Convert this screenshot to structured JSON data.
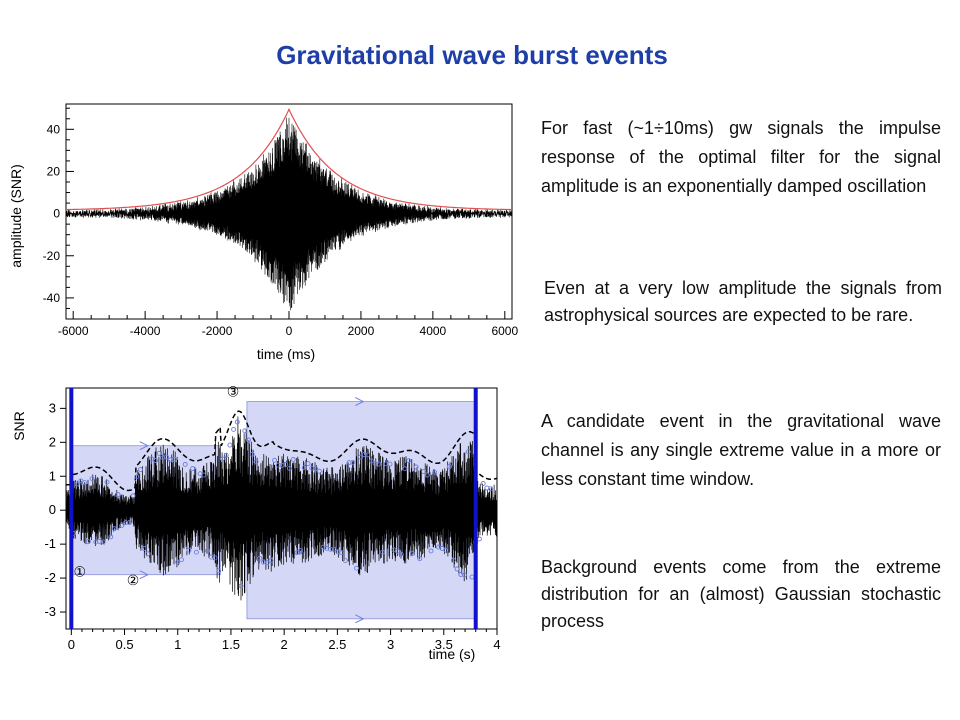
{
  "title": "Gravitational wave burst events",
  "paragraphs": {
    "p1": "For fast (~1÷10ms) gw signals the impulse response of the optimal filter for the signal amplitude is an exponentially damped oscillation",
    "p2": "Even at a very low amplitude the signals from astrophysical sources are expected to be rare.",
    "p3": "A candidate event in the gravitational wave channel is any single extreme value in a more or less constant time window.",
    "p4": "Background events come from the extreme distribution for an (almost) Gaussian stochastic process"
  },
  "chart_data": [
    {
      "type": "line",
      "xlabel": "time  (ms)",
      "ylabel": "amplitude   (SNR)",
      "xlim": [
        -6200,
        6200
      ],
      "ylim": [
        -50,
        52
      ],
      "x_ticks": [
        "-6000",
        "-4000",
        "-2000",
        "0",
        "2000",
        "4000",
        "6000"
      ],
      "y_ticks": [
        "40",
        "20",
        "0",
        "-20",
        "-40"
      ],
      "x_tick_values": [
        -6000,
        -4000,
        -2000,
        0,
        2000,
        4000,
        6000
      ],
      "y_tick_values": [
        40,
        20,
        0,
        -20,
        -40
      ],
      "envelope_peak": 48,
      "envelope_decay_ms": 1300,
      "noise_amplitude": 1.5,
      "signal_color": "#000000",
      "envelope_color": "#e05050"
    },
    {
      "type": "line",
      "xlabel": "time     (s)",
      "ylabel": "SNR",
      "xlim": [
        -0.05,
        4.0
      ],
      "ylim": [
        -3.5,
        3.6
      ],
      "x_ticks": [
        "0",
        "0.5",
        "1",
        "1.5",
        "2",
        "2.5",
        "3",
        "3.5",
        "4"
      ],
      "y_ticks": [
        "3",
        "2",
        "1",
        "0",
        "-1",
        "-2",
        "-3"
      ],
      "x_tick_values": [
        0,
        0.5,
        1,
        1.5,
        2,
        2.5,
        3,
        3.5,
        4
      ],
      "y_tick_values": [
        3,
        2,
        1,
        0,
        -1,
        -2,
        -3
      ],
      "window_start": 0,
      "window_end": 3.8,
      "annotations": [
        "①",
        "②",
        "③"
      ],
      "annotation_x": [
        0.08,
        0.58,
        1.52
      ],
      "annotation_y": [
        -1.95,
        -2.2,
        3.35
      ],
      "shaded_windows": [
        {
          "x0": 0.0,
          "x1": 1.4,
          "y0": -1.9,
          "y1": 1.9
        },
        {
          "x0": 1.65,
          "x1": 3.8,
          "y0": -3.2,
          "y1": 3.2
        }
      ],
      "signal_color": "#000000",
      "envelope_color": "#000000",
      "marker_color": "#6b7fe0",
      "window_color": "#1111cc",
      "zero_line_color": "#40d0d8",
      "shade_color": "#c9cdf2"
    }
  ]
}
